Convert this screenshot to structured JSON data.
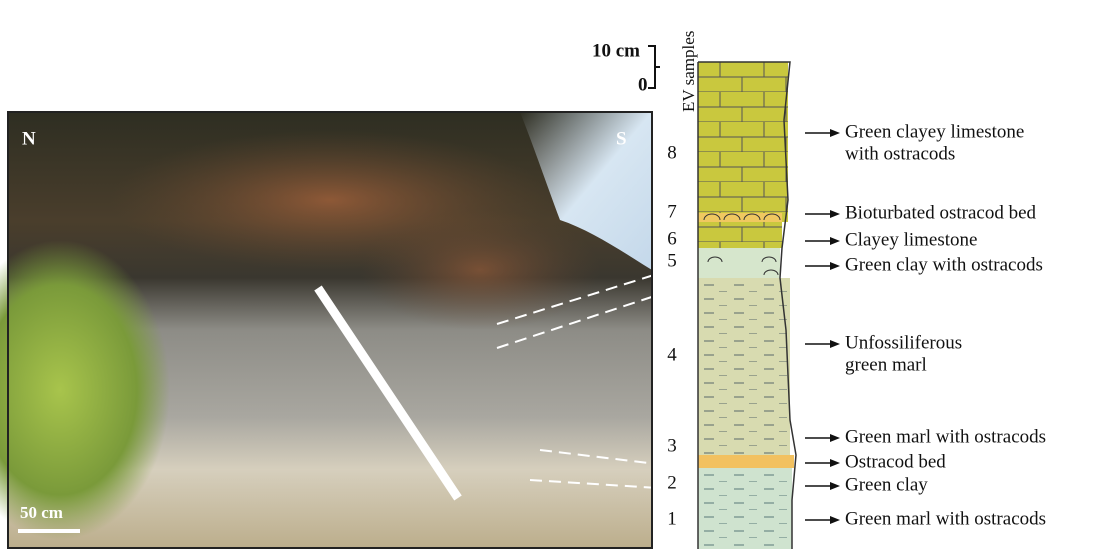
{
  "photo": {
    "north": "N",
    "south": "S",
    "scale_bar": "50 cm"
  },
  "column": {
    "scale_top": "10 cm",
    "scale_zero": "0",
    "samples_header": "EV samples",
    "samples": [
      "1",
      "2",
      "3",
      "4",
      "5",
      "6",
      "7",
      "8"
    ],
    "units": [
      {
        "lines": [
          "Green clayey limestone",
          "with ostracods"
        ]
      },
      {
        "lines": [
          "Bioturbated ostracod bed"
        ]
      },
      {
        "lines": [
          "Clayey limestone"
        ]
      },
      {
        "lines": [
          "Green clay with ostracods"
        ]
      },
      {
        "lines": [
          "Unfossiliferous",
          "green marl"
        ]
      },
      {
        "lines": [
          "Green marl with ostracods"
        ]
      },
      {
        "lines": [
          "Ostracod bed"
        ]
      },
      {
        "lines": [
          "Green clay"
        ]
      },
      {
        "lines": [
          "Green marl with ostracods"
        ]
      }
    ]
  }
}
